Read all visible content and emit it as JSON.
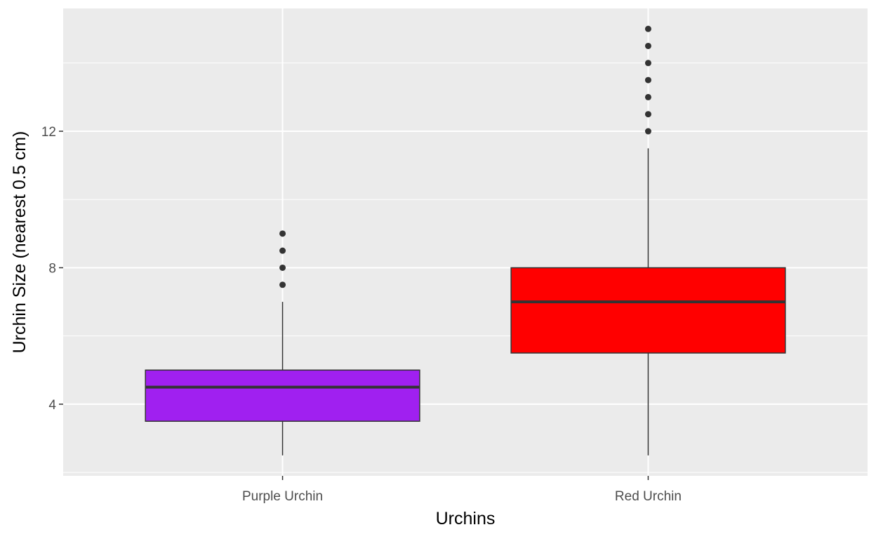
{
  "chart_data": {
    "type": "boxplot",
    "title": "",
    "xlabel": "Urchins",
    "ylabel": "Urchin Size (nearest 0.5 cm)",
    "ylim": [
      1.9,
      15.6
    ],
    "yticks": [
      4,
      8,
      12
    ],
    "ytick_labels": [
      "4",
      "8",
      "12"
    ],
    "grid": true,
    "legend": "none",
    "categories": [
      "Purple Urchin",
      "Red Urchin"
    ],
    "boxes": [
      {
        "category": "Purple Urchin",
        "min": 2.5,
        "q1": 3.5,
        "median": 4.5,
        "q3": 5.0,
        "max": 7.0,
        "outliers": [
          7.5,
          8.0,
          8.5,
          9.0
        ],
        "color": "#A020F0"
      },
      {
        "category": "Red Urchin",
        "min": 2.5,
        "q1": 5.5,
        "median": 7.0,
        "q3": 8.0,
        "max": 11.5,
        "outliers": [
          12.0,
          12.5,
          13.0,
          13.5,
          14.0,
          14.5,
          15.0
        ],
        "color": "#FF0000"
      }
    ],
    "panel_background": "#EBEBEB",
    "grid_color": "#FFFFFF",
    "box_border_color": "#333333"
  }
}
